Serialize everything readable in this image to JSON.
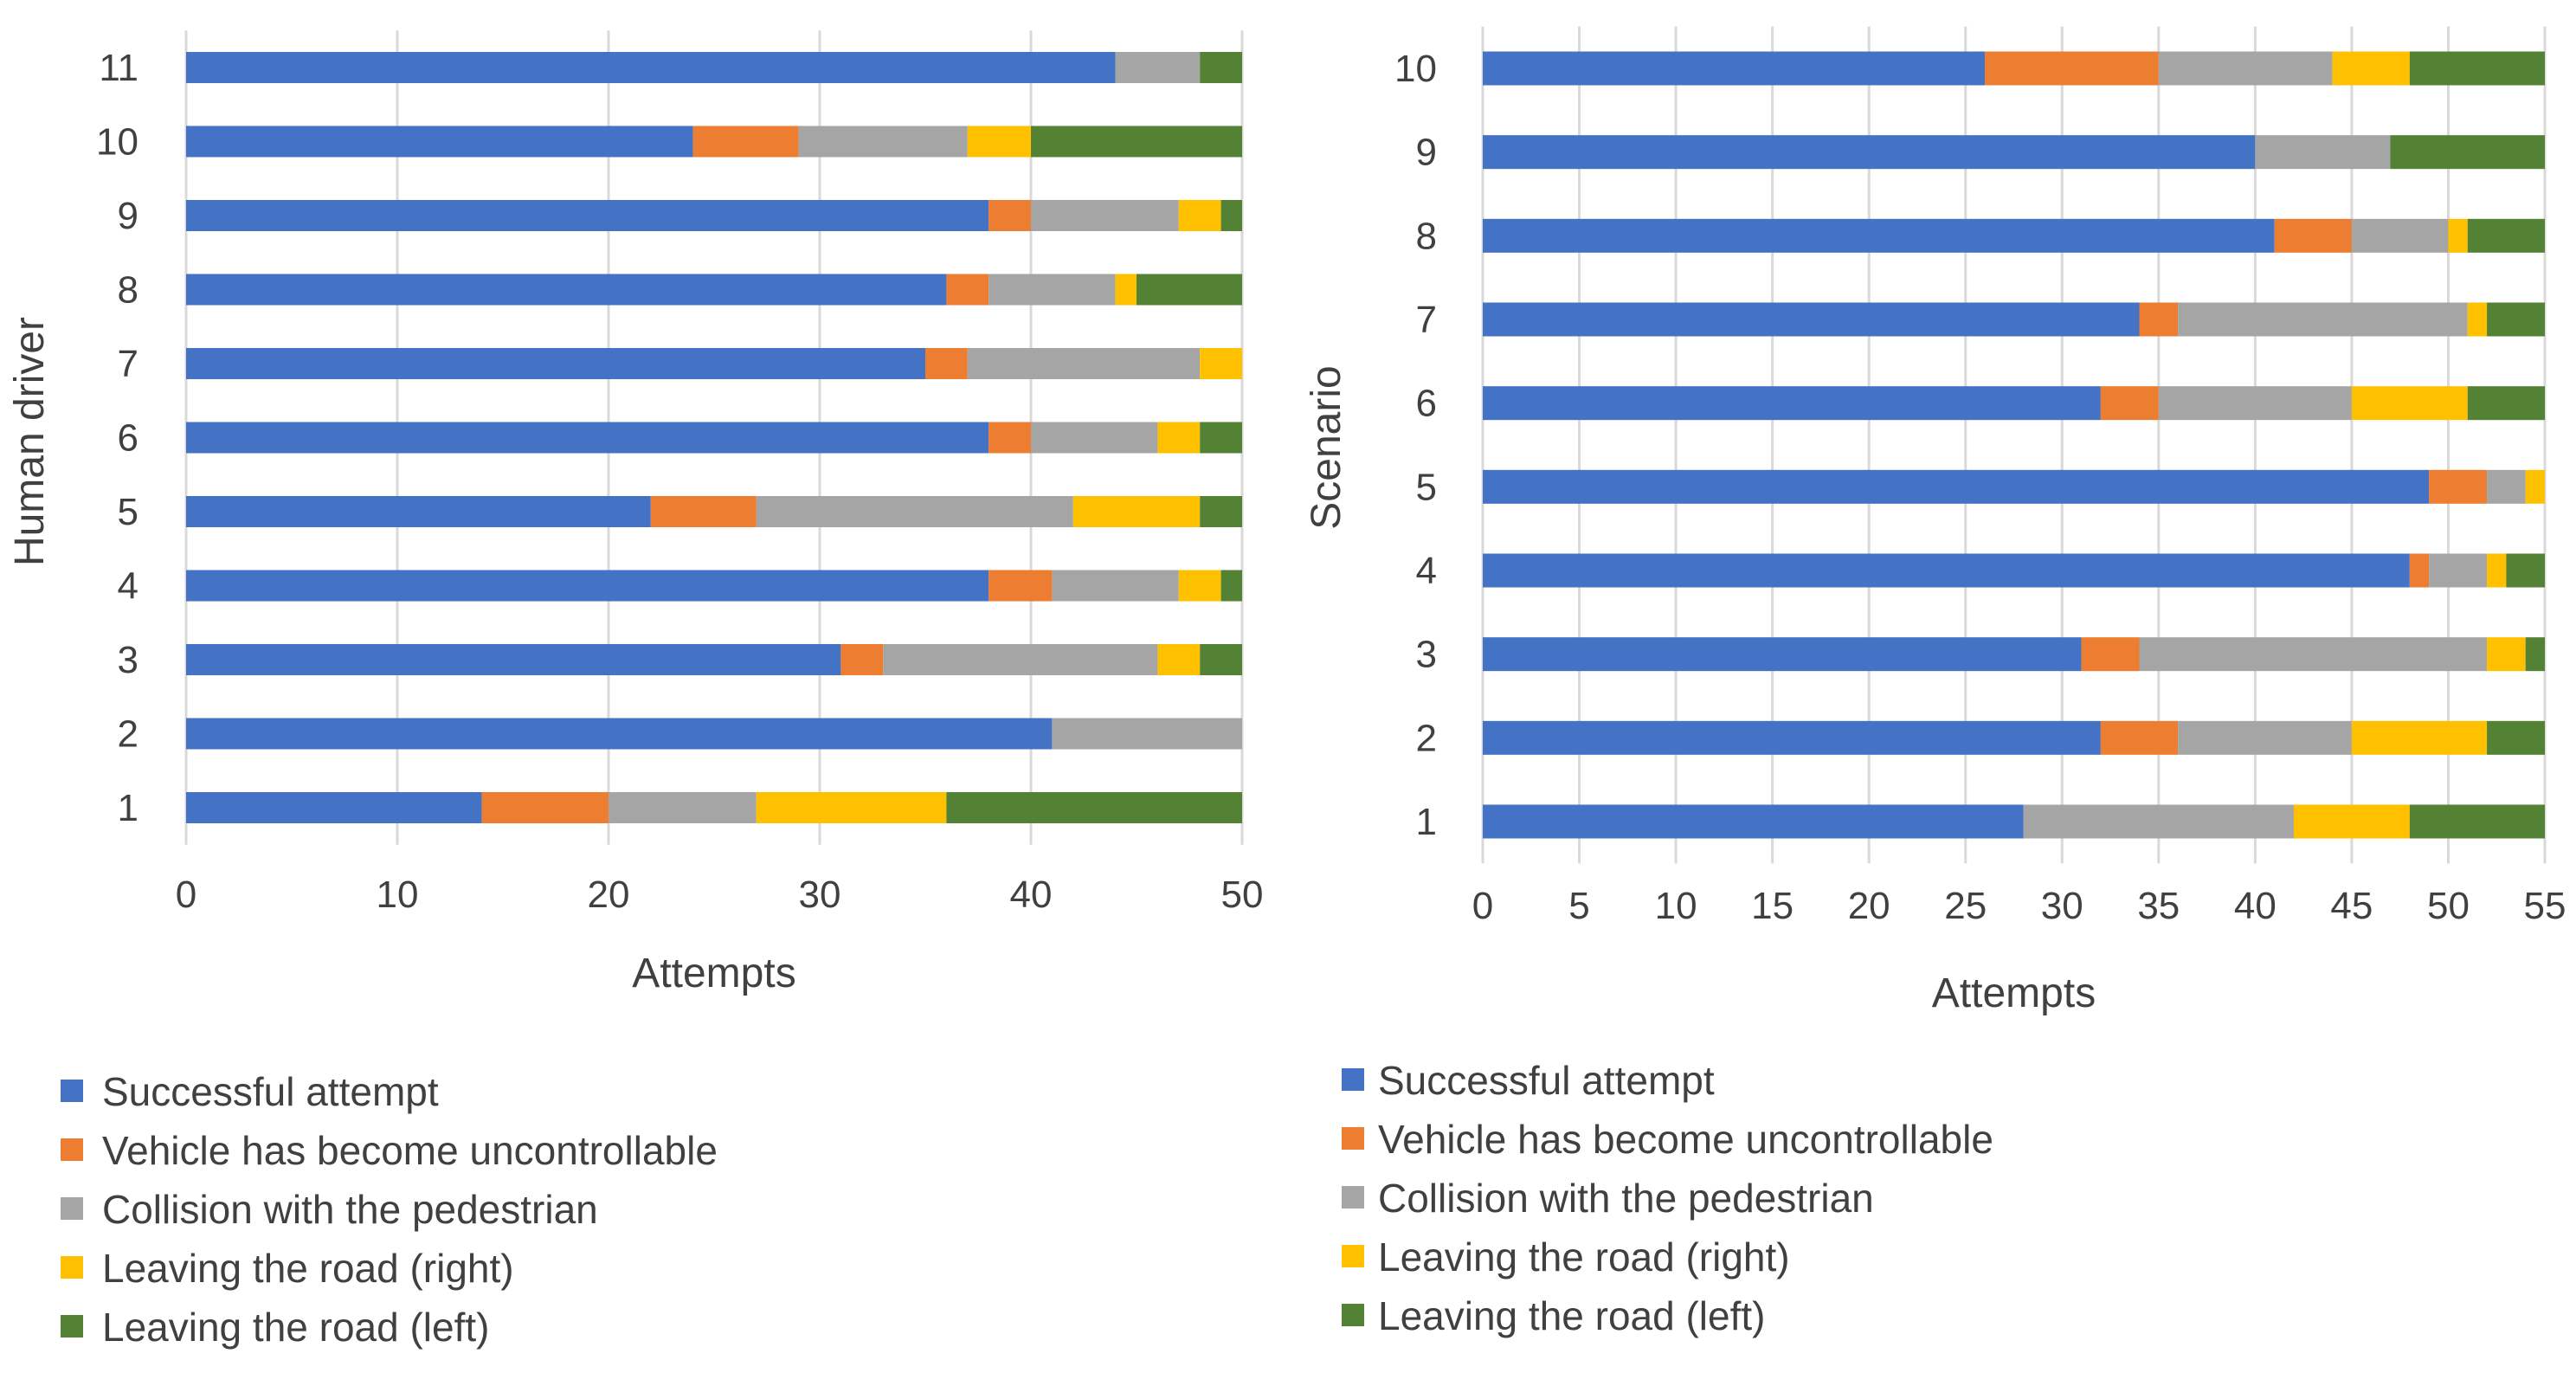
{
  "colors": {
    "successful": "#4472C4",
    "uncontrollable": "#ED7D31",
    "collision": "#A5A5A5",
    "leaving_right": "#FFC000",
    "leaving_left": "#548235",
    "grid": "#D9D9D9",
    "text": "#404040"
  },
  "chart_data": [
    {
      "type": "bar",
      "orientation": "horizontal",
      "stacked": true,
      "title": "",
      "xlabel": "Attempts",
      "ylabel": "Human driver",
      "xlim": [
        0,
        50
      ],
      "x_ticks": [
        "0",
        "10",
        "20",
        "30",
        "40",
        "50"
      ],
      "grid": true,
      "legend_position": "bottom",
      "categories": [
        "1",
        "2",
        "3",
        "4",
        "5",
        "6",
        "7",
        "8",
        "9",
        "10",
        "11"
      ],
      "series": [
        {
          "key": "successful",
          "name": "Successful attempt",
          "values": [
            14,
            41,
            31,
            38,
            22,
            38,
            35,
            36,
            38,
            24,
            44
          ]
        },
        {
          "key": "uncontrollable",
          "name": "Vehicle has become uncontrollable",
          "values": [
            6,
            0,
            2,
            3,
            5,
            2,
            2,
            2,
            2,
            5,
            0
          ]
        },
        {
          "key": "collision",
          "name": "Collision with the pedestrian",
          "values": [
            7,
            9,
            13,
            6,
            15,
            6,
            11,
            6,
            7,
            8,
            4
          ]
        },
        {
          "key": "leaving_right",
          "name": "Leaving the road (right)",
          "values": [
            9,
            0,
            2,
            2,
            6,
            2,
            2,
            1,
            2,
            3,
            0
          ]
        },
        {
          "key": "leaving_left",
          "name": "Leaving the road (left)",
          "values": [
            14,
            0,
            2,
            1,
            2,
            2,
            0,
            5,
            1,
            10,
            2
          ]
        }
      ]
    },
    {
      "type": "bar",
      "orientation": "horizontal",
      "stacked": true,
      "title": "",
      "xlabel": "Attempts",
      "ylabel": "Scenario",
      "xlim": [
        0,
        55
      ],
      "x_ticks": [
        "0",
        "5",
        "10",
        "15",
        "20",
        "25",
        "30",
        "35",
        "40",
        "45",
        "50",
        "55"
      ],
      "grid": true,
      "legend_position": "bottom",
      "categories": [
        "1",
        "2",
        "3",
        "4",
        "5",
        "6",
        "7",
        "8",
        "9",
        "10"
      ],
      "series": [
        {
          "key": "successful",
          "name": "Successful attempt",
          "values": [
            28,
            32,
            31,
            48,
            49,
            32,
            34,
            41,
            40,
            26
          ]
        },
        {
          "key": "uncontrollable",
          "name": "Vehicle has become uncontrollable",
          "values": [
            0,
            4,
            3,
            1,
            3,
            3,
            2,
            4,
            0,
            9
          ]
        },
        {
          "key": "collision",
          "name": "Collision with the pedestrian",
          "values": [
            14,
            9,
            18,
            3,
            2,
            10,
            15,
            5,
            7,
            9
          ]
        },
        {
          "key": "leaving_right",
          "name": "Leaving the road (right)",
          "values": [
            6,
            7,
            2,
            1,
            1,
            6,
            1,
            1,
            0,
            4
          ]
        },
        {
          "key": "leaving_left",
          "name": "Leaving the road (left)",
          "values": [
            7,
            3,
            1,
            2,
            0,
            4,
            3,
            4,
            8,
            7
          ]
        }
      ]
    }
  ]
}
